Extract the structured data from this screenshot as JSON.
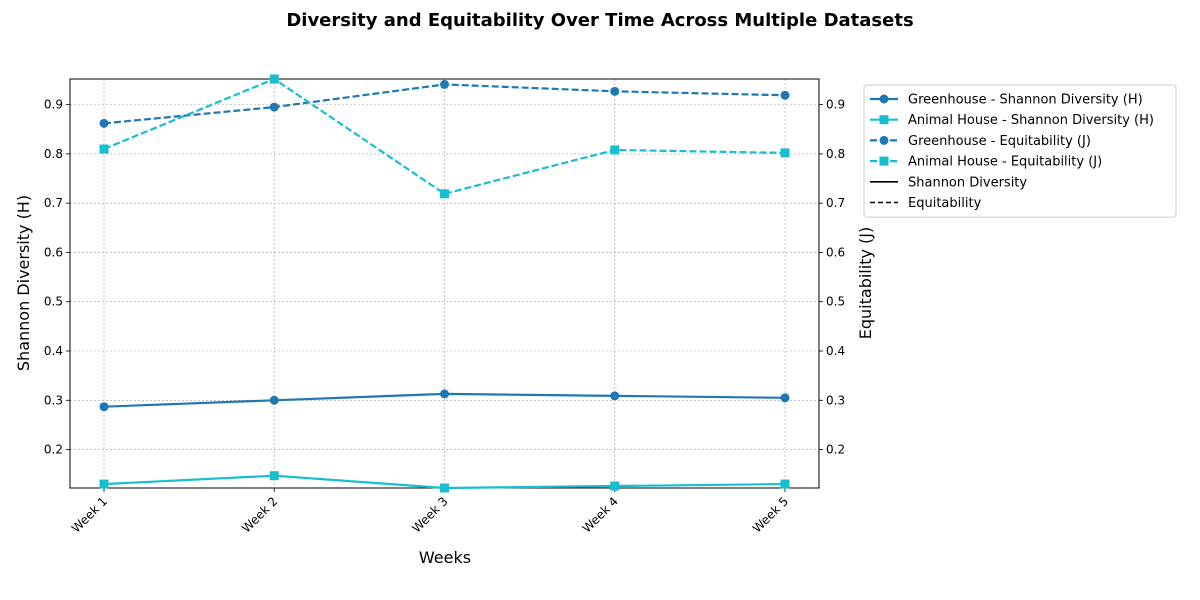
{
  "chart_data": {
    "type": "line",
    "title": "Diversity and Equitability Over Time Across Multiple Datasets",
    "xlabel": "Weeks",
    "ylabel": "Shannon Diversity (H)",
    "y2label": "Equitability (J)",
    "categories": [
      "Week 1",
      "Week 2",
      "Week 3",
      "Week 4",
      "Week 5"
    ],
    "ylim": [
      0.122,
      0.952
    ],
    "y2lim": [
      0.122,
      0.952
    ],
    "yticks": [
      "0.2",
      "0.3",
      "0.4",
      "0.5",
      "0.6",
      "0.7",
      "0.8",
      "0.9"
    ],
    "y2ticks": [
      "0.2",
      "0.3",
      "0.4",
      "0.5",
      "0.6",
      "0.7",
      "0.8",
      "0.9"
    ],
    "grid": true,
    "legend_position": "outside-right",
    "series": [
      {
        "name": "Greenhouse - Shannon Diversity (H)",
        "axis": "left",
        "values": [
          0.287,
          0.3,
          0.313,
          0.309,
          0.305
        ],
        "color": "#1f77b4",
        "linestyle": "solid",
        "marker": "circle"
      },
      {
        "name": "Animal House - Shannon Diversity (H)",
        "axis": "left",
        "values": [
          0.13,
          0.147,
          0.122,
          0.126,
          0.13
        ],
        "color": "#17becf",
        "linestyle": "solid",
        "marker": "square"
      },
      {
        "name": "Greenhouse - Equitability (J)",
        "axis": "right",
        "values": [
          0.862,
          0.895,
          0.941,
          0.927,
          0.919
        ],
        "color": "#1f77b4",
        "linestyle": "dashed",
        "marker": "circle"
      },
      {
        "name": "Animal House - Equitability (J)",
        "axis": "right",
        "values": [
          0.81,
          0.952,
          0.719,
          0.808,
          0.802
        ],
        "color": "#17becf",
        "linestyle": "dashed",
        "marker": "square"
      }
    ],
    "legend_extra": [
      {
        "name": "Shannon Diversity",
        "color": "#000000",
        "linestyle": "solid"
      },
      {
        "name": "Equitability",
        "color": "#000000",
        "linestyle": "dashed"
      }
    ]
  }
}
